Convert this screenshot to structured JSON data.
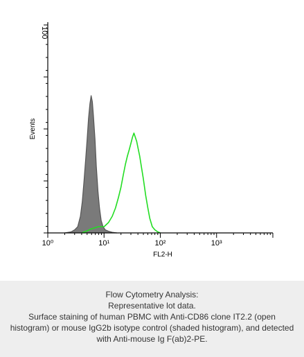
{
  "chart_data": {
    "type": "line",
    "title": "",
    "xlabel": "FL2-H",
    "ylabel": "Events",
    "x_scale": "log",
    "xlim": [
      1,
      10000
    ],
    "ylim": [
      0,
      100
    ],
    "x_ticks": [
      {
        "value": 1,
        "label": "10⁰"
      },
      {
        "value": 10,
        "label": "10¹"
      },
      {
        "value": 100,
        "label": "10²"
      },
      {
        "value": 1000,
        "label": "10³"
      }
    ],
    "y_tick_label_top": "100",
    "grid": false,
    "legend": "none",
    "series": [
      {
        "color": "#555555",
        "fill": "#7a7a7a",
        "style": "shaded",
        "points": [
          [
            2.0,
            0
          ],
          [
            2.6,
            0.5
          ],
          [
            3.0,
            1.5
          ],
          [
            3.4,
            3
          ],
          [
            3.8,
            8
          ],
          [
            4.1,
            15
          ],
          [
            4.4,
            25
          ],
          [
            4.7,
            35
          ],
          [
            5.0,
            45
          ],
          [
            5.3,
            55
          ],
          [
            5.6,
            62
          ],
          [
            5.9,
            66
          ],
          [
            6.2,
            63
          ],
          [
            6.5,
            56
          ],
          [
            6.9,
            45
          ],
          [
            7.3,
            32
          ],
          [
            7.8,
            20
          ],
          [
            8.3,
            12
          ],
          [
            8.9,
            6
          ],
          [
            9.6,
            3
          ],
          [
            10.5,
            1.5
          ],
          [
            12,
            0.8
          ],
          [
            14,
            0.3
          ],
          [
            17,
            0
          ]
        ]
      },
      {
        "color": "#22dd22",
        "fill": "none",
        "style": "open",
        "points": [
          [
            4.0,
            0
          ],
          [
            5.0,
            1
          ],
          [
            6.0,
            2
          ],
          [
            8.0,
            3
          ],
          [
            10,
            3
          ],
          [
            12,
            5
          ],
          [
            14,
            8
          ],
          [
            16,
            12
          ],
          [
            18,
            17
          ],
          [
            20,
            22
          ],
          [
            22,
            28
          ],
          [
            24,
            33
          ],
          [
            26,
            37
          ],
          [
            28,
            40
          ],
          [
            30,
            43
          ],
          [
            32,
            46
          ],
          [
            34,
            48
          ],
          [
            36,
            46
          ],
          [
            38,
            44
          ],
          [
            40,
            41
          ],
          [
            43,
            37
          ],
          [
            46,
            32
          ],
          [
            50,
            26
          ],
          [
            55,
            18
          ],
          [
            60,
            12
          ],
          [
            65,
            7
          ],
          [
            72,
            3
          ],
          [
            80,
            1.5
          ],
          [
            90,
            0.5
          ],
          [
            100,
            0
          ]
        ]
      }
    ]
  },
  "caption": {
    "line1": "Flow Cytometry Analysis:",
    "line2": "Representative lot data.",
    "line3": "Surface staining of human PBMC with Anti-CD86 clone IT2.2 (open",
    "line4": "histogram) or mouse IgG2b isotype control (shaded histogram), and detected",
    "line5": "with Anti-mouse Ig F(ab)2-PE."
  }
}
